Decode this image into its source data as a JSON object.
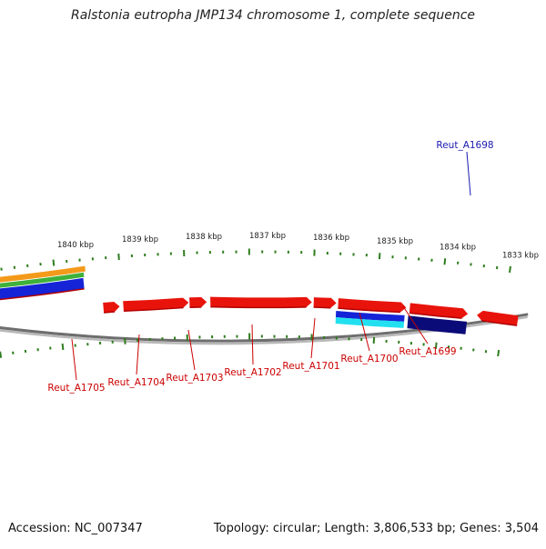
{
  "title": "Ralstonia eutropha JMP134 chromosome 1, complete sequence",
  "footer": {
    "accession": "Accession: NC_007347",
    "summary": "Topology: circular; Length: 3,806,533 bp; Genes: 3,504"
  },
  "colors": {
    "background": "#ffffff",
    "backbone": "#8a8a8a",
    "tick": "#2e7d1e",
    "gene_red": "#e8140c",
    "label_red": "#cc0000",
    "label_blue": "#1a1ab0",
    "orange": "#f39a1a",
    "green": "#3fb13a",
    "blue": "#1424d6",
    "navy": "#0a0a78",
    "cyan": "#22e0f0"
  },
  "ruler_labels": [
    "1840 kbp",
    "1839 kbp",
    "1838 kbp",
    "1837 kbp",
    "1836 kbp",
    "1835 kbp",
    "1834 kbp",
    "1833 kbp"
  ],
  "gene_labels": [
    {
      "text": "Reut_A1698",
      "color": "blue"
    },
    {
      "text": "Reut_A1699",
      "color": "red"
    },
    {
      "text": "Reut_A1700",
      "color": "red"
    },
    {
      "text": "Reut_A1701",
      "color": "red"
    },
    {
      "text": "Reut_A1702",
      "color": "red"
    },
    {
      "text": "Reut_A1703",
      "color": "red"
    },
    {
      "text": "Reut_A1704",
      "color": "red"
    },
    {
      "text": "Reut_A1705",
      "color": "red"
    }
  ]
}
